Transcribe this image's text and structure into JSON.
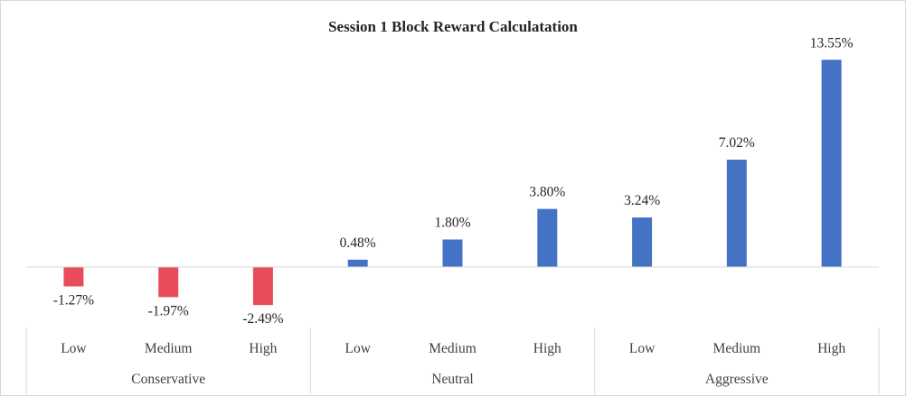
{
  "chart_data": {
    "type": "bar",
    "title": "Session 1 Block Reward Calculatation",
    "xlabel": "",
    "ylabel": "",
    "groups": [
      {
        "name": "Conservative",
        "categories": [
          "Low",
          "Medium",
          "High"
        ],
        "values": [
          -1.27,
          -1.97,
          -2.49
        ],
        "labels": [
          "-1.27%",
          "-1.97%",
          "-2.49%"
        ]
      },
      {
        "name": "Neutral",
        "categories": [
          "Low",
          "Medium",
          "High"
        ],
        "values": [
          0.48,
          1.8,
          3.8
        ],
        "labels": [
          "0.48%",
          "1.80%",
          "3.80%"
        ]
      },
      {
        "name": "Aggressive",
        "categories": [
          "Low",
          "Medium",
          "High"
        ],
        "values": [
          3.24,
          7.02,
          13.55
        ],
        "labels": [
          "3.24%",
          "7.02%",
          "13.55%"
        ]
      }
    ],
    "unit": "%",
    "grid": false,
    "legend": "none",
    "colors": {
      "positive": "#4472C4",
      "negative": "#E84C5A",
      "axis": "#d9d9d9"
    }
  }
}
